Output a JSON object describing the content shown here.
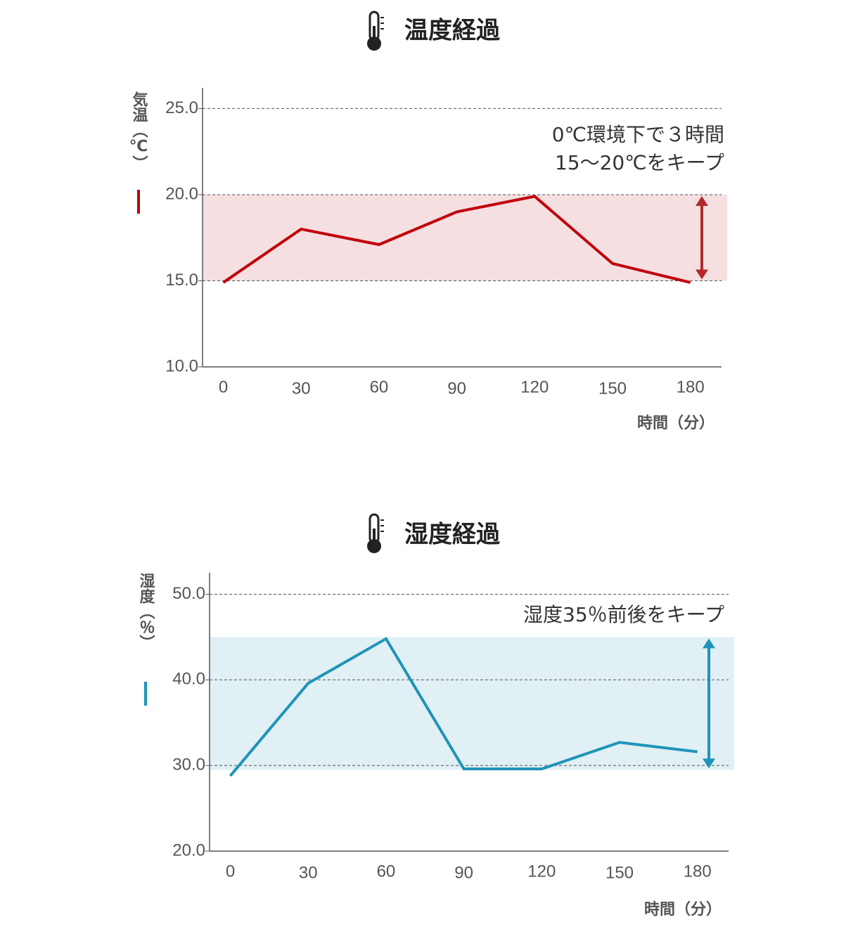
{
  "chart_data": [
    {
      "type": "line",
      "title": "温度経過",
      "y_label": "気温（℃）",
      "x_label": "時間（分）",
      "annotation": [
        "0℃環境下で３時間",
        "15〜20℃をキープ"
      ],
      "x": [
        0,
        30,
        60,
        90,
        120,
        150,
        180
      ],
      "series": [
        {
          "name": "気温",
          "color": "#c0000b",
          "values": [
            14.9,
            18,
            17.1,
            19,
            19.9,
            16,
            14.9
          ]
        }
      ],
      "band": [
        15,
        20
      ],
      "band_color": "#f5dfe0",
      "arrow_color": "#b02a2e",
      "xlim": [
        -8,
        192
      ],
      "xticks": [
        0,
        30,
        60,
        90,
        120,
        150,
        180
      ],
      "ylim": [
        10,
        26.2
      ],
      "yticks": [
        {
          "value": 10,
          "label": "10.0"
        },
        {
          "value": 15,
          "label": "15.0"
        },
        {
          "value": 20,
          "label": "20.0"
        },
        {
          "value": 25,
          "label": "25.0"
        }
      ],
      "grid": true
    },
    {
      "type": "line",
      "title": "湿度経過",
      "y_label": "湿度（％）",
      "x_label": "時間（分）",
      "annotation": [
        "湿度35％前後をキープ"
      ],
      "x": [
        0,
        30,
        60,
        90,
        120,
        150,
        180
      ],
      "series": [
        {
          "name": "湿度",
          "color": "#1f94b8",
          "values": [
            28.8,
            39.6,
            44.8,
            29.6,
            29.6,
            32.7,
            31.6
          ]
        }
      ],
      "band": [
        29.5,
        45
      ],
      "band_color": "#e0f0f5",
      "arrow_color": "#1f94b8",
      "xlim": [
        -8,
        192
      ],
      "xticks": [
        0,
        30,
        60,
        90,
        120,
        150,
        180
      ],
      "ylim": [
        20,
        52.5
      ],
      "yticks": [
        {
          "value": 20,
          "label": "20.0"
        },
        {
          "value": 30,
          "label": "30.0"
        },
        {
          "value": 40,
          "label": "40.0"
        },
        {
          "value": 50,
          "label": "50.0"
        }
      ],
      "grid": true
    }
  ]
}
